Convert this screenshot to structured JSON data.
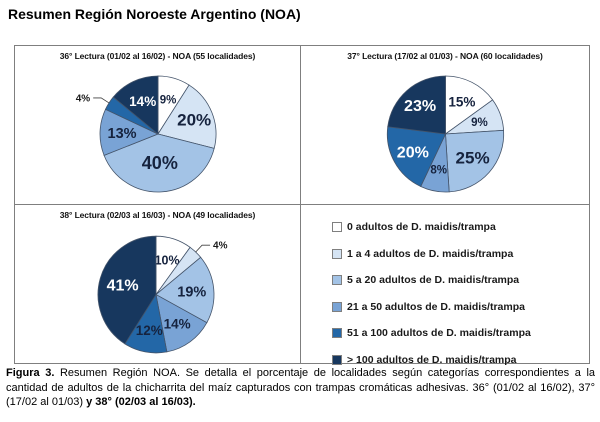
{
  "page": {
    "title": "Resumen Región Noroeste Argentino (NOA)"
  },
  "colors": {
    "categories": [
      "#FFFFFF",
      "#D5E4F4",
      "#A3C3E6",
      "#79A3D5",
      "#2367A7",
      "#17375E"
    ],
    "slice_stroke": "#44546A",
    "leader_line": "#404040",
    "panel_border": "#7F7F7F",
    "dark_label": "#16233E"
  },
  "legend": {
    "items": [
      {
        "label": "0 adultos de D. maidis/trampa",
        "color": "#FFFFFF"
      },
      {
        "label": "1 a 4 adultos de D. maidis/trampa",
        "color": "#D5E4F4"
      },
      {
        "label": "5 a 20 adultos de D. maidis/trampa",
        "color": "#A3C3E6"
      },
      {
        "label": "21 a 50 adultos de D. maidis/trampa",
        "color": "#79A3D5"
      },
      {
        "label": "51 a 100 adultos de D. maidis/trampa",
        "color": "#2367A7"
      },
      {
        "label": "> 100 adultos de D. maidis/trampa",
        "color": "#17375E"
      }
    ]
  },
  "chart_data": [
    {
      "type": "pie",
      "title": "36° Lectura (01/02 al 16/02) - NOA (55 localidades)",
      "categories": [
        "0 adultos de D. maidis/trampa",
        "1 a 4 adultos de D. maidis/trampa",
        "5 a 20 adultos de D. maidis/trampa",
        "21 a 50 adultos de D. maidis/trampa",
        "51 a 100 adultos de D. maidis/trampa",
        "> 100 adultos de D. maidis/trampa"
      ],
      "values": [
        9,
        20,
        40,
        13,
        4,
        14
      ],
      "labels": [
        "9%",
        "20%",
        "40%",
        "13%",
        "4%",
        "14%"
      ],
      "start_angle": 0,
      "direction": "clockwise",
      "label_styles": [
        {
          "placement": "inside",
          "color": "#16233E",
          "size": 11.5
        },
        {
          "placement": "inside",
          "color": "#16233E",
          "size": 17,
          "r": 0.67
        },
        {
          "placement": "inside",
          "color": "#16233E",
          "size": 18,
          "r": 0.5
        },
        {
          "placement": "inside",
          "color": "#16233E",
          "size": 14.5
        },
        {
          "placement": "outside",
          "color": "#1A1A1A",
          "size": 10
        },
        {
          "placement": "inside",
          "color": "#FFFFFF",
          "size": 13.5
        }
      ]
    },
    {
      "type": "pie",
      "title": "37° Lectura (17/02 al 01/03) - NOA (60 localidades)",
      "categories": [
        "0 adultos de D. maidis/trampa",
        "1 a 4 adultos de D. maidis/trampa",
        "5 a 20 adultos de D. maidis/trampa",
        "21 a 50 adultos de D. maidis/trampa",
        "51 a 100 adultos de D. maidis/trampa",
        "> 100 adultos de D. maidis/trampa"
      ],
      "values": [
        15,
        9,
        25,
        8,
        20,
        23
      ],
      "labels": [
        "15%",
        "9%",
        "25%",
        "8%",
        "20%",
        "23%"
      ],
      "start_angle": 0,
      "direction": "clockwise",
      "label_styles": [
        {
          "placement": "inside",
          "color": "#16233E",
          "size": 13.5
        },
        {
          "placement": "inside",
          "color": "#16233E",
          "size": 11.5
        },
        {
          "placement": "inside",
          "color": "#16233E",
          "size": 17
        },
        {
          "placement": "inside",
          "color": "#16233E",
          "size": 11.5
        },
        {
          "placement": "inside",
          "color": "#FFFFFF",
          "size": 16,
          "r": 0.64
        },
        {
          "placement": "inside",
          "color": "#FFFFFF",
          "size": 16,
          "r": 0.66
        }
      ]
    },
    {
      "type": "pie",
      "title": "38° Lectura (02/03 al 16/03) - NOA (49 localidades)",
      "categories": [
        "0 adultos de D. maidis/trampa",
        "1 a 4 adultos de D. maidis/trampa",
        "5 a 20 adultos de D. maidis/trampa",
        "21 a 50 adultos de D. maidis/trampa",
        "51 a 100 adultos de D. maidis/trampa",
        "> 100 adultos de D. maidis/trampa"
      ],
      "values": [
        10,
        4,
        19,
        14,
        12,
        41
      ],
      "labels": [
        "10%",
        "4%",
        "19%",
        "14%",
        "12%",
        "41%"
      ],
      "start_angle": 0,
      "direction": "clockwise",
      "label_styles": [
        {
          "placement": "inside",
          "color": "#16233E",
          "size": 12.5
        },
        {
          "placement": "outside",
          "color": "#1A1A1A",
          "size": 10
        },
        {
          "placement": "inside",
          "color": "#16233E",
          "size": 14.5
        },
        {
          "placement": "inside",
          "color": "#16233E",
          "size": 13.5
        },
        {
          "placement": "inside",
          "color": "#16233E",
          "size": 13.5
        },
        {
          "placement": "inside",
          "color": "#FFFFFF",
          "size": 16,
          "r": 0.6
        }
      ]
    }
  ],
  "caption": {
    "prefix": "Figura 3.",
    "body": " Resumen Región NOA. Se detalla el porcentaje de localidades según categorías correspondientes a la cantidad de adultos de la chicharrita del maíz capturados con trampas cromáticas adhesivas. 36° (01/02 al 16/02), 37° (17/02 al 01/03) ",
    "suffix": "y 38° (02/03 al 16/03)."
  }
}
